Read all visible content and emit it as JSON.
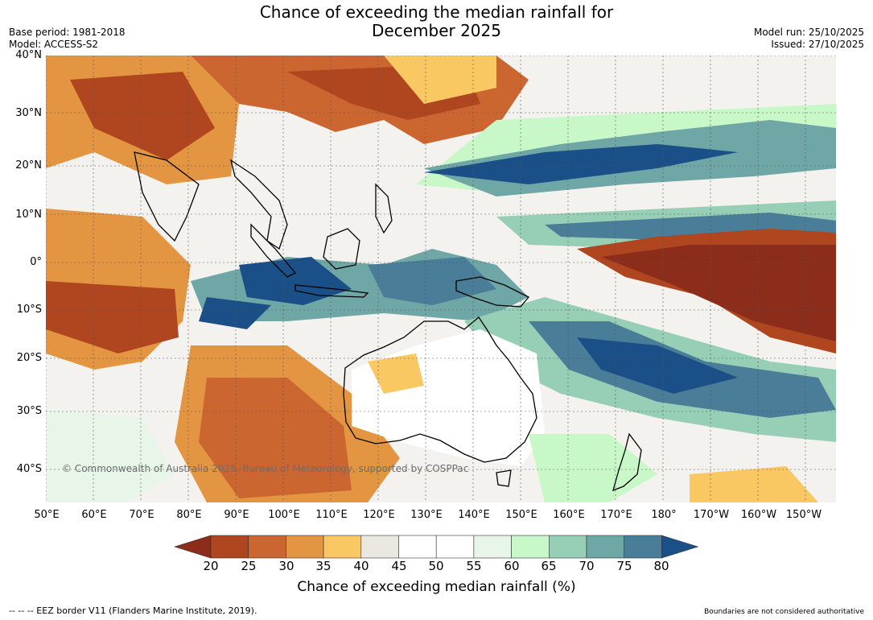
{
  "header": {
    "title_line1": "Chance of exceeding the median rainfall for",
    "title_line2": "December 2025",
    "base_period": "Base period: 1981-2018",
    "model": "Model: ACCESS-S2",
    "model_run": "Model run: 25/10/2025",
    "issued": "Issued: 27/10/2025"
  },
  "map": {
    "lat_labels": [
      "40°N",
      "30°N",
      "20°N",
      "10°N",
      "0°",
      "10°S",
      "20°S",
      "30°S",
      "40°S"
    ],
    "lon_labels": [
      "50°E",
      "60°E",
      "70°E",
      "80°E",
      "90°E",
      "100°E",
      "110°E",
      "120°E",
      "130°E",
      "140°E",
      "150°E",
      "160°E",
      "170°E",
      "180°",
      "170°W",
      "160°W",
      "150°W"
    ],
    "copyright": "© Commonwealth of Australia 2025, Bureau of Meteorology, supported by COSPPac"
  },
  "colorbar": {
    "title": "Chance of exceeding median rainfall (%)",
    "ticks": [
      "20",
      "25",
      "30",
      "35",
      "40",
      "45",
      "50",
      "55",
      "60",
      "65",
      "70",
      "75",
      "80"
    ],
    "colors": [
      "#8c2d1b",
      "#b0461f",
      "#cc6630",
      "#e39542",
      "#fac862",
      "#ebe8e2",
      "#ffffff",
      "#ffffff",
      "#e8f5e9",
      "#c8f7c8",
      "#97cfb6",
      "#6fa6a6",
      "#4a7d98",
      "#1b4f87"
    ]
  },
  "footer": {
    "eez_note": "--  --  -- EEZ border V11 (Flanders Marine Institute, 2019).",
    "disclaimer": "Boundaries are not considered authoritative"
  }
}
